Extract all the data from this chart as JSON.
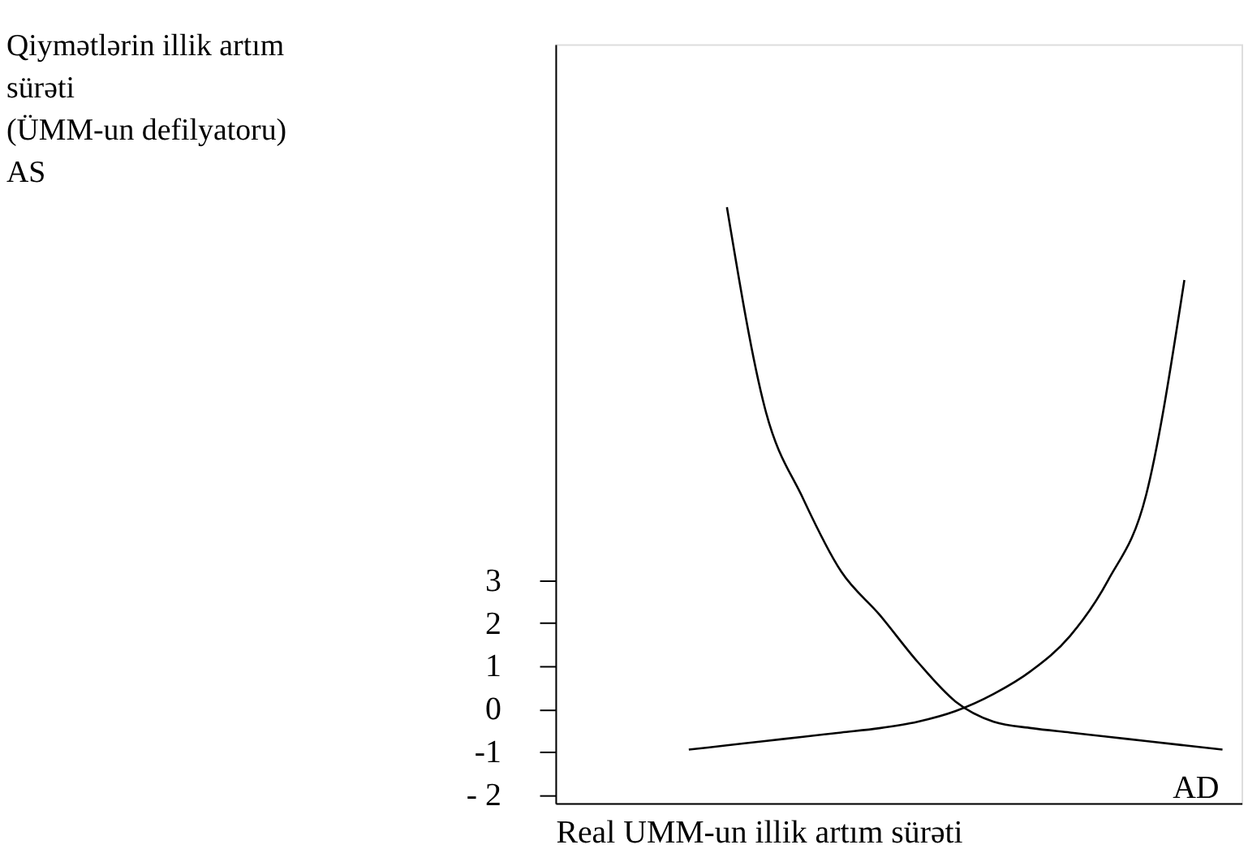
{
  "chart_data": {
    "type": "line",
    "xlabel": "Real UMM-un illik artım sürəti",
    "annotations": [
      "Qiymətlərin illik artım sürəti (ÜMM-un defilyatoru)",
      "AS"
    ],
    "categories": [
      null,
      null,
      null,
      null,
      null,
      null,
      null,
      null,
      null,
      null,
      null,
      null,
      null,
      null,
      null,
      null,
      null,
      null
    ],
    "series": [
      {
        "name": "AD",
        "color": "#000000",
        "values": [
          null,
          null,
          null,
          null,
          11.7,
          7.0,
          4.9,
          3.2,
          2.2,
          1.1,
          0.17,
          -0.3,
          -0.45,
          -0.55,
          -0.65,
          -0.75,
          -0.85,
          -0.95
        ]
      },
      {
        "color": "#000000",
        "values": [
          null,
          null,
          null,
          -0.95,
          -0.85,
          -0.75,
          -0.65,
          -0.55,
          -0.45,
          -0.3,
          -0.05,
          0.35,
          0.9,
          1.7,
          3.0,
          5.0,
          10.0,
          null
        ]
      }
    ],
    "ylim": [
      -2.2,
      15.5
    ],
    "yticks": [
      -1,
      0,
      1,
      2,
      3,
      {
        "value": -2,
        "label": "- 2"
      }
    ],
    "grid": false,
    "marker": "none",
    "line_style": "solid",
    "tick_labels": "y"
  }
}
